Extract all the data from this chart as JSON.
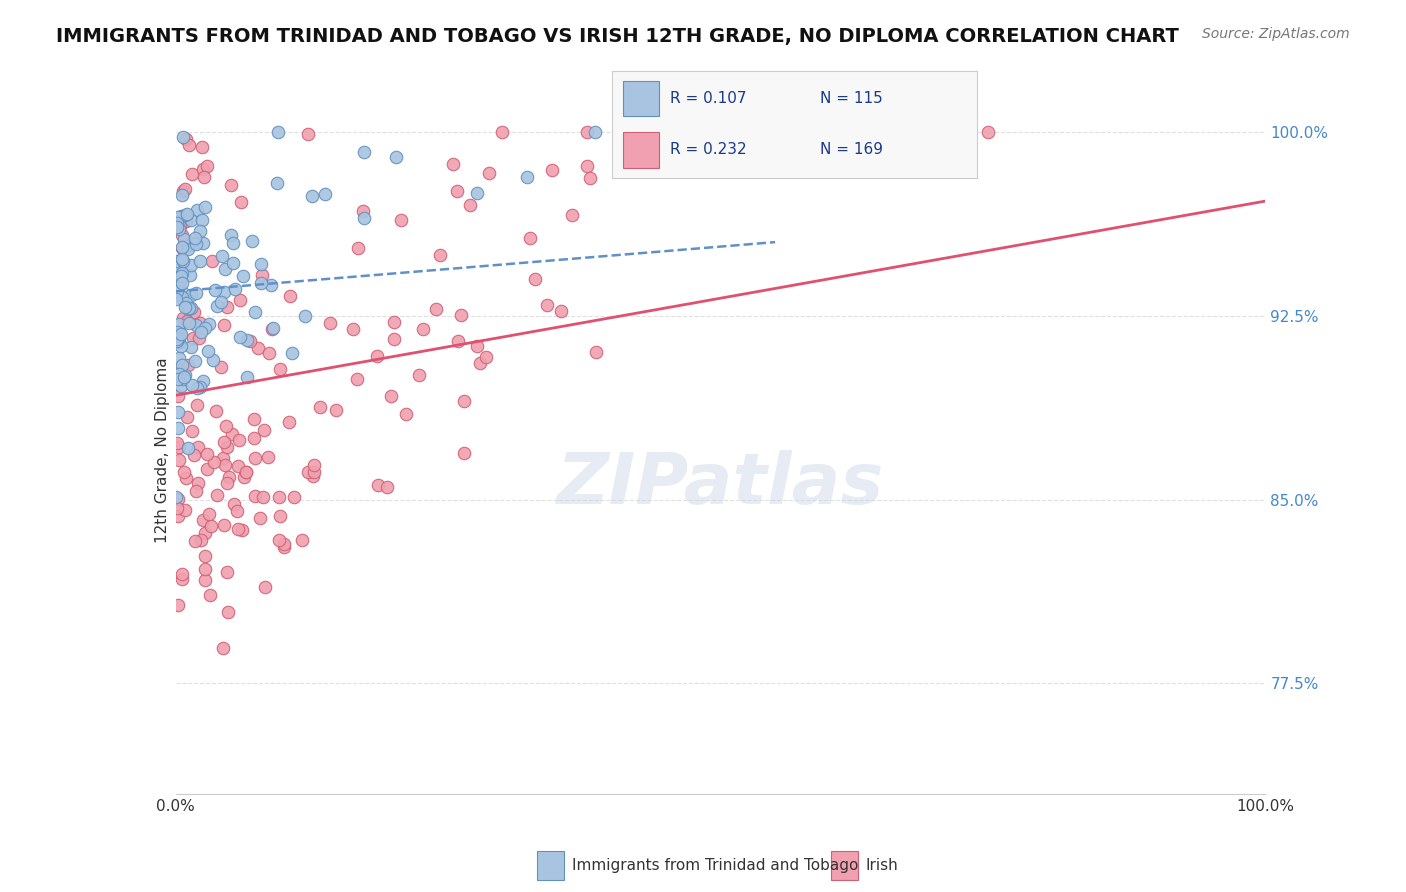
{
  "title": "IMMIGRANTS FROM TRINIDAD AND TOBAGO VS IRISH 12TH GRADE, NO DIPLOMA CORRELATION CHART",
  "source": "Source: ZipAtlas.com",
  "xlabel": "",
  "ylabel": "12th Grade, No Diploma",
  "blue_label": "Immigrants from Trinidad and Tobago",
  "pink_label": "Irish",
  "blue_R": 0.107,
  "blue_N": 115,
  "pink_R": 0.232,
  "pink_N": 169,
  "blue_color": "#a8c4e0",
  "pink_color": "#f0a0b0",
  "blue_edge": "#6090c0",
  "pink_edge": "#d06070",
  "blue_trend_color": "#6090c8",
  "pink_trend_color": "#e05070",
  "legend_text_color": "#1a3a8a",
  "background_color": "#ffffff",
  "grid_color": "#e0e0e0",
  "xmin": 0.0,
  "xmax": 1.0,
  "ymin": 0.73,
  "ymax": 1.01,
  "yticks": [
    0.775,
    0.85,
    0.925,
    1.0
  ],
  "ytick_labels": [
    "77.5%",
    "85.0%",
    "92.5%",
    "100.0%"
  ],
  "xtick_labels": [
    "0.0%",
    "100.0%"
  ],
  "watermark": "ZIPatlas",
  "title_fontsize": 14,
  "marker_size": 9
}
